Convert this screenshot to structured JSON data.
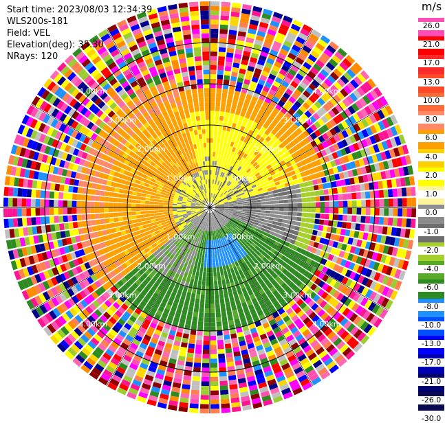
{
  "header": {
    "start_time": "Start time: 2023/08/03 12:34:39",
    "instrument": "WLS200s-181",
    "field": "Field: VEL",
    "elevation": "Elevation(deg): 35.30",
    "nrays": "NRays: 120"
  },
  "range_rings": {
    "labels": [
      "1.00km",
      "2.00km",
      "3.00km",
      "4.00km"
    ],
    "ring_km": [
      1,
      2,
      3,
      4
    ],
    "max_range_km": 5
  },
  "colorbar": {
    "unit": "m/s",
    "levels": [
      "26.0",
      "21.0",
      "17.0",
      "13.0",
      "10.0",
      "8.0",
      "6.0",
      "4.0",
      "2.0",
      "1.0",
      "0.0",
      "-1.0",
      "-2.0",
      "-4.0",
      "-6.0",
      "-8.0",
      "-10.0",
      "-13.0",
      "-17.0",
      "-21.0",
      "-26.0",
      "-30.0"
    ],
    "colors": [
      "#ff4fb5",
      "#ff0000",
      "#ff2a2a",
      "#ff4a2a",
      "#ff6a3a",
      "#ff8a6a",
      "#ffa000",
      "#ffd000",
      "#ffff00",
      "#fff59a",
      "#8c8c8c",
      "#6e6e6e",
      "#a6d12c",
      "#58a82a",
      "#2e8b22",
      "#1e90ff",
      "#0050ff",
      "#0000ff",
      "#0000b0",
      "#00006e",
      "#0a0a50"
    ]
  }
}
